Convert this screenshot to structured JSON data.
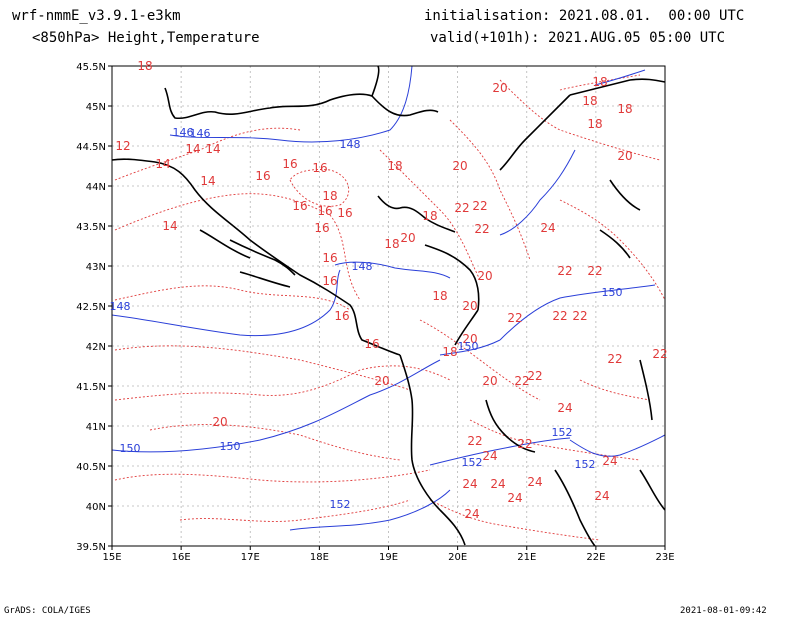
{
  "header": {
    "model": "wrf-nmmE_v3.9.1-e3km",
    "field": "<850hPa> Height,Temperature",
    "init": "initialisation: 2021.08.01.  00:00 UTC",
    "valid": "valid(+101h): 2021.AUG.05 05:00 UTC"
  },
  "footer": {
    "left": "GrADS: COLA/IGES",
    "right": "2021-08-01-09:42"
  },
  "axes": {
    "lon_ticks": [
      "15E",
      "16E",
      "17E",
      "18E",
      "19E",
      "20E",
      "21E",
      "22E",
      "23E"
    ],
    "lat_ticks": [
      "45.5N",
      "45N",
      "44.5N",
      "44N",
      "43.5N",
      "43N",
      "42.5N",
      "42N",
      "41.5N",
      "41N",
      "40.5N",
      "40N",
      "39.5N"
    ]
  },
  "colors": {
    "temperature": "#e03a3a",
    "height": "#2a3fd8",
    "coast": "#000000"
  },
  "temperature_labels": [
    "12",
    "14",
    "14",
    "14",
    "14",
    "14",
    "16",
    "16",
    "16",
    "16",
    "16",
    "16",
    "16",
    "16",
    "16",
    "16",
    "16",
    "18",
    "18",
    "18",
    "18",
    "18",
    "18",
    "18",
    "18",
    "18",
    "18",
    "18",
    "20",
    "20",
    "20",
    "20",
    "20",
    "20",
    "20",
    "20",
    "20",
    "20",
    "22",
    "22",
    "22",
    "22",
    "22",
    "22",
    "22",
    "22",
    "22",
    "22",
    "22",
    "22",
    "22",
    "22",
    "24",
    "24",
    "24",
    "24",
    "24",
    "24",
    "24",
    "24",
    "24",
    "24"
  ],
  "height_labels": [
    "146",
    "146",
    "148",
    "148",
    "148",
    "150",
    "150",
    "150",
    "150",
    "152",
    "152",
    "152",
    "152"
  ]
}
